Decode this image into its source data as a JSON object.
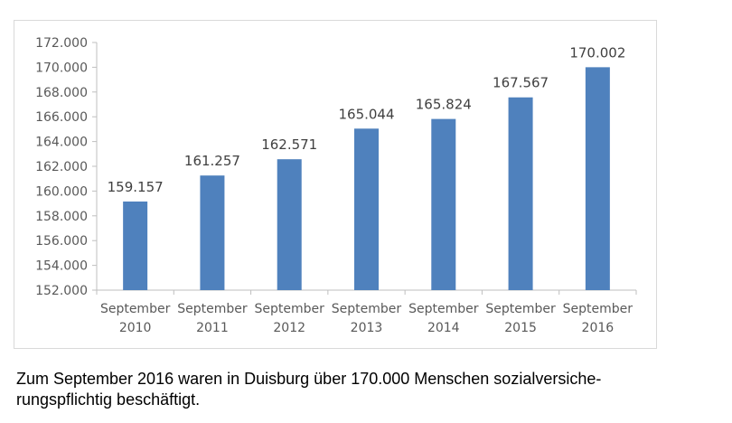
{
  "chart_data": {
    "type": "bar",
    "categories": [
      [
        "September",
        "2010"
      ],
      [
        "September",
        "2011"
      ],
      [
        "September",
        "2012"
      ],
      [
        "September",
        "2013"
      ],
      [
        "September",
        "2014"
      ],
      [
        "September",
        "2015"
      ],
      [
        "September",
        "2016"
      ]
    ],
    "values": [
      159157,
      161257,
      162571,
      165044,
      165824,
      167567,
      170002
    ],
    "data_labels": [
      "159.157",
      "161.257",
      "162.571",
      "165.044",
      "165.824",
      "167.567",
      "170.002"
    ],
    "yticks": [
      152000,
      154000,
      156000,
      158000,
      160000,
      162000,
      164000,
      166000,
      168000,
      170000,
      172000
    ],
    "ytick_labels": [
      "152.000",
      "154.000",
      "156.000",
      "158.000",
      "160.000",
      "162.000",
      "164.000",
      "166.000",
      "168.000",
      "170.000",
      "172.000"
    ],
    "ylim": [
      152000,
      172000
    ],
    "grid": false,
    "legend": "none",
    "bar_color": "#4f81bd",
    "axis_color": "#bfbfbf",
    "text_color": "#595959"
  },
  "caption": {
    "line1": "Zum September 2016 waren in Duisburg über 170.000 Menschen  sozialversiche-",
    "line2": "rungspflichtig beschäftigt."
  }
}
